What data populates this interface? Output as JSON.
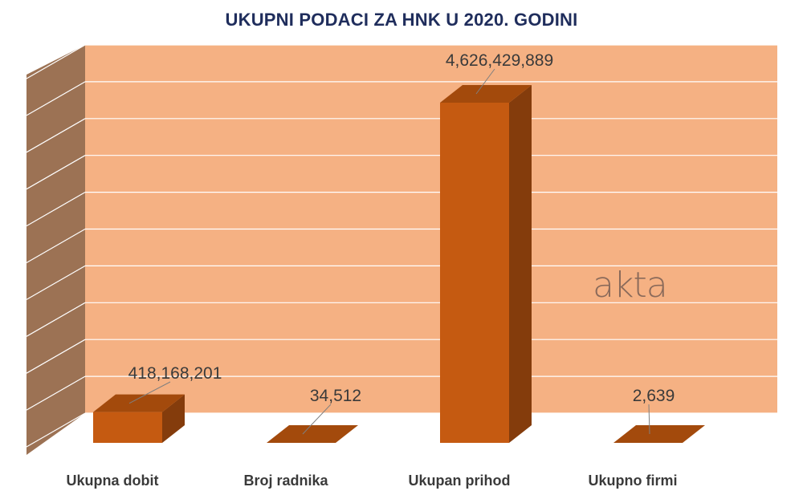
{
  "chart_data": {
    "type": "bar",
    "title": "UKUPNI PODACI ZA HNK U 2020. GODINI",
    "categories": [
      "Ukupna dobit",
      "Broj radnika",
      "Ukupan prihod",
      "Ukupno firmi"
    ],
    "values": [
      418168201,
      34512,
      4626429889,
      2639
    ],
    "value_labels": [
      "418,168,201",
      "34,512",
      "4,626,429,889",
      "2,639"
    ],
    "ylim": [
      0,
      5000000000
    ],
    "grid": true,
    "colors": {
      "bar_front": "#c55a11",
      "bar_top": "#a34a0c",
      "bar_side": "#843c0c",
      "back_wall": "#f5b183",
      "side_wall": "#9c7254",
      "grid": "#ffffff"
    }
  },
  "watermark": {
    "text": "akta"
  }
}
